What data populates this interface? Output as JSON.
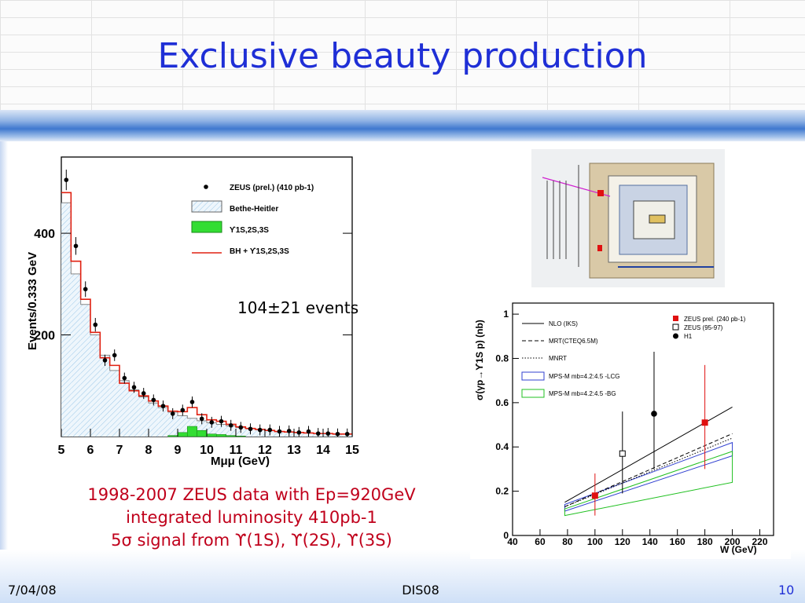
{
  "slide": {
    "title": "Exclusive beauty production",
    "events_note": "104±21 events",
    "caption_lines": [
      "1998-2007 ZEUS data with Ep=920GeV",
      "integrated luminosity 410pb-1",
      "5σ signal from ϒ(1S), ϒ(2S), ϒ(3S)"
    ],
    "footer": {
      "date": "7/04/08",
      "center": "DIS08",
      "page": "10"
    },
    "colors": {
      "title": "#1f2fd6",
      "caption": "#c0001b",
      "page_number": "#1f2fd6"
    }
  },
  "detector_image": {
    "description_icon": "detector-event-display-icon"
  },
  "chart_data": [
    {
      "type": "bar",
      "xlabel": "Mμμ (GeV)",
      "ylabel": "Events/0.333 GeV",
      "xlim": [
        5,
        15
      ],
      "ylim": [
        0,
        550
      ],
      "xticks": [
        "5",
        "6",
        "7",
        "8",
        "9",
        "10",
        "11",
        "12",
        "13",
        "14",
        "15"
      ],
      "yticks": [
        "200",
        "400"
      ],
      "legend": [
        "ZEUS (prel.) (410 pb-1)",
        "Bethe-Heitler",
        "ϒ1S,2S,3S",
        "BH + ϒ1S,2S,3S"
      ],
      "legend_position": "top-right",
      "series": [
        {
          "name": "ZEUS (prel.) (410 pb-1)",
          "kind": "points",
          "x": [
            5.17,
            5.5,
            5.83,
            6.17,
            6.5,
            6.83,
            7.17,
            7.5,
            7.83,
            8.17,
            8.5,
            8.83,
            9.17,
            9.5,
            9.83,
            10.17,
            10.5,
            10.83,
            11.17,
            11.5,
            11.83,
            12.17,
            12.5,
            12.83,
            13.17,
            13.5,
            13.83,
            14.17,
            14.5,
            14.83
          ],
          "y": [
            505,
            375,
            290,
            220,
            150,
            160,
            115,
            97,
            85,
            72,
            60,
            45,
            52,
            68,
            35,
            28,
            30,
            22,
            18,
            15,
            13,
            13,
            10,
            11,
            8,
            10,
            6,
            6,
            5,
            5
          ]
        },
        {
          "name": "Bethe-Heitler",
          "kind": "filled-histogram",
          "y": [
            460,
            320,
            260,
            200,
            160,
            130,
            110,
            92,
            78,
            66,
            57,
            48,
            41,
            36,
            31,
            27,
            24,
            21,
            18,
            16,
            14,
            12,
            10,
            9,
            8,
            7,
            6,
            6,
            5,
            5
          ]
        },
        {
          "name": "ϒ1S,2S,3S",
          "kind": "filled-histogram",
          "y": [
            0,
            0,
            0,
            0,
            0,
            0,
            0,
            0,
            0,
            0,
            0,
            2,
            8,
            20,
            12,
            5,
            4,
            2,
            1,
            0,
            0,
            0,
            0,
            0,
            0,
            0,
            0,
            0,
            0,
            0
          ]
        },
        {
          "name": "BH + ϒ1S,2S,3S",
          "kind": "line-histogram",
          "y": [
            480,
            345,
            270,
            205,
            155,
            140,
            105,
            90,
            80,
            70,
            60,
            50,
            49,
            57,
            43,
            33,
            30,
            24,
            19,
            16,
            14,
            12,
            10,
            9,
            8,
            7,
            6,
            6,
            5,
            5
          ]
        }
      ]
    },
    {
      "type": "scatter",
      "xlabel": "W (GeV)",
      "ylabel": "σ(γp→ϒ1S p) (nb)",
      "xlim": [
        40,
        230
      ],
      "ylim": [
        0,
        1.05
      ],
      "xticks": [
        "40",
        "60",
        "80",
        "100",
        "120",
        "140",
        "160",
        "180",
        "200",
        "220"
      ],
      "yticks": [
        "0",
        "0.2",
        "0.4",
        "0.6",
        "0.8",
        "1"
      ],
      "legend_position": "top-right",
      "legend": [
        "ZEUS prel. (240 pb-1)",
        "ZEUS (95-97)",
        "H1",
        "NLO (IKS)",
        "MRT(CTEQ6.5M)",
        "MNRT",
        "MPS-M mb=4.2:4.5 -LCG",
        "MPS-M mb=4.2:4.5 -BG"
      ],
      "series": [
        {
          "name": "ZEUS prel. (240 pb-1)",
          "kind": "points",
          "marker": "filled-square",
          "color": "#e01010",
          "x": [
            100,
            180
          ],
          "y": [
            0.18,
            0.51
          ],
          "yerr": [
            [
              0.09,
              0.1
            ],
            [
              0.21,
              0.26
            ]
          ]
        },
        {
          "name": "ZEUS (95-97)",
          "kind": "points",
          "marker": "open-square",
          "color": "#000000",
          "x": [
            120
          ],
          "y": [
            0.37
          ],
          "yerr": [
            [
              0.18,
              0.19
            ]
          ]
        },
        {
          "name": "H1",
          "kind": "points",
          "marker": "filled-circle",
          "color": "#000000",
          "x": [
            143
          ],
          "y": [
            0.55
          ],
          "yerr": [
            [
              0.25,
              0.28
            ]
          ]
        },
        {
          "name": "NLO (IKS)",
          "kind": "line",
          "style": "solid",
          "color": "#000000",
          "x": [
            78,
            200
          ],
          "y": [
            0.15,
            0.58
          ]
        },
        {
          "name": "MRT(CTEQ6.5M)",
          "kind": "line",
          "style": "dashed",
          "color": "#000000",
          "x": [
            78,
            200
          ],
          "y": [
            0.13,
            0.46
          ]
        },
        {
          "name": "MNRT",
          "kind": "line",
          "style": "dotted",
          "color": "#000000",
          "x": [
            78,
            200
          ],
          "y": [
            0.13,
            0.44
          ]
        },
        {
          "name": "MPS-M mb=4.2:4.5 -LCG",
          "kind": "band",
          "color": "#3040d0",
          "x": [
            78,
            200
          ],
          "y_low": [
            0.11,
            0.36
          ],
          "y_high": [
            0.14,
            0.42
          ]
        },
        {
          "name": "MPS-M mb=4.2:4.5 -BG",
          "kind": "band",
          "color": "#20c020",
          "x": [
            78,
            200
          ],
          "y_low": [
            0.09,
            0.24
          ],
          "y_high": [
            0.12,
            0.38
          ]
        }
      ]
    }
  ]
}
